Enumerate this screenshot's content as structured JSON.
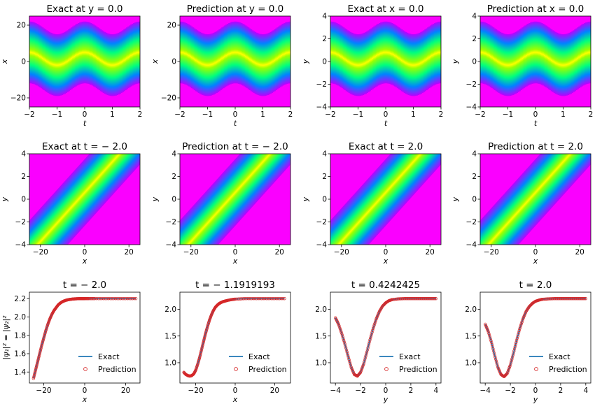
{
  "chart_data": [
    {
      "type": "heatmap",
      "title": "Exact at y = 0.0",
      "xlabel": "t",
      "ylabel": "x",
      "xlim": [
        -2,
        2
      ],
      "ylim": [
        -25,
        25
      ],
      "xticks": [
        -2,
        -1,
        0,
        1,
        2
      ],
      "yticks": [
        -20,
        0,
        20
      ],
      "field": "soliton-t-x",
      "colormap": "hsv"
    },
    {
      "type": "heatmap",
      "title": "Prediction at y = 0.0",
      "xlabel": "t",
      "ylabel": "x",
      "xlim": [
        -2,
        2
      ],
      "ylim": [
        -25,
        25
      ],
      "xticks": [
        -2,
        -1,
        0,
        1,
        2
      ],
      "yticks": [
        -20,
        0,
        20
      ],
      "field": "soliton-t-x",
      "colormap": "hsv"
    },
    {
      "type": "heatmap",
      "title": "Exact at x = 0.0",
      "xlabel": "t",
      "ylabel": "y",
      "xlim": [
        -2,
        2
      ],
      "ylim": [
        -4,
        4
      ],
      "xticks": [
        -2,
        -1,
        0,
        1,
        2
      ],
      "yticks": [
        -4,
        -2,
        0,
        2,
        4
      ],
      "field": "soliton-t-y",
      "colormap": "hsv"
    },
    {
      "type": "heatmap",
      "title": "Prediction at x = 0.0",
      "xlabel": "t",
      "ylabel": "y",
      "xlim": [
        -2,
        2
      ],
      "ylim": [
        -4,
        4
      ],
      "xticks": [
        -2,
        -1,
        0,
        1,
        2
      ],
      "yticks": [
        -4,
        -2,
        0,
        2,
        4
      ],
      "field": "soliton-t-y",
      "colormap": "hsv"
    },
    {
      "type": "heatmap",
      "title": "Exact at t = − 2.0",
      "xlabel": "x",
      "ylabel": "y",
      "xlim": [
        -25,
        25
      ],
      "ylim": [
        -4,
        4
      ],
      "xticks": [
        -20,
        0,
        20
      ],
      "yticks": [
        -4,
        -2,
        0,
        2,
        4
      ],
      "field": "soliton-x-y",
      "shift": 0,
      "colormap": "hsv"
    },
    {
      "type": "heatmap",
      "title": "Prediction at t = − 2.0",
      "xlabel": "x",
      "ylabel": "y",
      "xlim": [
        -25,
        25
      ],
      "ylim": [
        -4,
        4
      ],
      "xticks": [
        -20,
        0,
        20
      ],
      "yticks": [
        -4,
        -2,
        0,
        2,
        4
      ],
      "field": "soliton-x-y",
      "shift": 0,
      "colormap": "hsv"
    },
    {
      "type": "heatmap",
      "title": "Exact at t = 2.0",
      "xlabel": "x",
      "ylabel": "y",
      "xlim": [
        -25,
        25
      ],
      "ylim": [
        -4,
        4
      ],
      "xticks": [
        -20,
        0,
        20
      ],
      "yticks": [
        -4,
        -2,
        0,
        2,
        4
      ],
      "field": "soliton-x-y",
      "shift": 0,
      "colormap": "hsv"
    },
    {
      "type": "heatmap",
      "title": "Prediction at t = 2.0",
      "xlabel": "x",
      "ylabel": "y",
      "xlim": [
        -25,
        25
      ],
      "ylim": [
        -4,
        4
      ],
      "xticks": [
        -20,
        0,
        20
      ],
      "yticks": [
        -4,
        -2,
        0,
        2,
        4
      ],
      "field": "soliton-x-y",
      "shift": 0,
      "colormap": "hsv"
    },
    {
      "type": "line",
      "title": "t = − 2.0",
      "xlabel": "x",
      "ylabel": "|ψ₁|² = |ψ₂|²",
      "xlim": [
        -27,
        27
      ],
      "ylim": [
        1.28,
        2.27
      ],
      "xticks": [
        -20,
        0,
        20
      ],
      "yticks": [
        1.4,
        1.6,
        1.8,
        2.0,
        2.2
      ],
      "ytick_format": "1",
      "legend": "lower-right",
      "x": [
        -25,
        -24,
        -23,
        -22,
        -21,
        -20,
        -19,
        -18,
        -17,
        -16,
        -15,
        -14,
        -13,
        -12,
        -11,
        -10,
        -9,
        -8,
        -7,
        -6,
        -5,
        -4,
        -3,
        -2,
        -1,
        0,
        2,
        5,
        10,
        15,
        20,
        25
      ],
      "y": [
        1.33,
        1.42,
        1.51,
        1.6,
        1.69,
        1.77,
        1.85,
        1.92,
        1.98,
        2.03,
        2.07,
        2.1,
        2.13,
        2.15,
        2.165,
        2.175,
        2.183,
        2.188,
        2.192,
        2.195,
        2.197,
        2.198,
        2.199,
        2.2,
        2.2,
        2.2,
        2.2,
        2.2,
        2.2,
        2.2,
        2.2,
        2.2
      ],
      "series": [
        {
          "name": "Exact",
          "color": "#1f77b4",
          "style": "line"
        },
        {
          "name": "Prediction",
          "color": "#d62728",
          "style": "open-circle"
        }
      ]
    },
    {
      "type": "line",
      "title": "t = − 1.1919193",
      "xlabel": "x",
      "ylabel": "",
      "xlim": [
        -28,
        28
      ],
      "ylim": [
        0.62,
        2.32
      ],
      "xticks": [
        -20,
        0,
        20
      ],
      "yticks": [
        1.0,
        1.5,
        2.0
      ],
      "ytick_format": "1",
      "legend": "lower-right",
      "x": [
        -26,
        -25,
        -24,
        -23,
        -22,
        -21,
        -20,
        -19,
        -18,
        -17,
        -16,
        -15,
        -14,
        -13,
        -12,
        -11,
        -10,
        -9,
        -8,
        -7,
        -6,
        -5,
        -4,
        -2,
        0,
        5,
        10,
        15,
        20,
        25
      ],
      "y": [
        0.82,
        0.78,
        0.76,
        0.75,
        0.76,
        0.79,
        0.86,
        0.97,
        1.1,
        1.25,
        1.4,
        1.55,
        1.68,
        1.8,
        1.9,
        1.98,
        2.04,
        2.08,
        2.11,
        2.13,
        2.145,
        2.155,
        2.165,
        2.18,
        2.19,
        2.2,
        2.2,
        2.2,
        2.2,
        2.2
      ],
      "series": [
        {
          "name": "Exact",
          "color": "#1f77b4",
          "style": "line"
        },
        {
          "name": "Prediction",
          "color": "#d62728",
          "style": "open-circle"
        }
      ]
    },
    {
      "type": "line",
      "title": "t = 0.4242425",
      "xlabel": "y",
      "ylabel": "",
      "xlim": [
        -4.4,
        4.4
      ],
      "ylim": [
        0.62,
        2.32
      ],
      "xticks": [
        -4,
        -2,
        0,
        2,
        4
      ],
      "yticks": [
        1.0,
        1.5,
        2.0
      ],
      "ytick_format": "1",
      "legend": "lower-right",
      "x": [
        -4,
        -3.75,
        -3.5,
        -3.25,
        -3,
        -2.75,
        -2.5,
        -2.25,
        -2,
        -1.75,
        -1.5,
        -1.25,
        -1,
        -0.75,
        -0.5,
        -0.25,
        0,
        0.25,
        0.5,
        1,
        1.5,
        2,
        2.5,
        3,
        3.5,
        4
      ],
      "y": [
        1.84,
        1.72,
        1.55,
        1.35,
        1.13,
        0.92,
        0.78,
        0.75,
        0.82,
        0.98,
        1.2,
        1.43,
        1.64,
        1.82,
        1.96,
        2.06,
        2.12,
        2.16,
        2.18,
        2.195,
        2.2,
        2.2,
        2.2,
        2.2,
        2.2,
        2.2
      ],
      "series": [
        {
          "name": "Exact",
          "color": "#1f77b4",
          "style": "line"
        },
        {
          "name": "Prediction",
          "color": "#d62728",
          "style": "open-circle"
        }
      ]
    },
    {
      "type": "line",
      "title": "t = 2.0",
      "xlabel": "y",
      "ylabel": "",
      "xlim": [
        -4.4,
        4.4
      ],
      "ylim": [
        0.62,
        2.32
      ],
      "xticks": [
        -4,
        -2,
        0,
        2,
        4
      ],
      "yticks": [
        1.0,
        1.5,
        2.0
      ],
      "ytick_format": "1",
      "legend": "lower-right",
      "x": [
        -4,
        -3.75,
        -3.5,
        -3.25,
        -3,
        -2.75,
        -2.5,
        -2.25,
        -2,
        -1.75,
        -1.5,
        -1.25,
        -1,
        -0.75,
        -0.5,
        -0.25,
        0,
        0.25,
        0.5,
        1,
        1.5,
        2,
        2.5,
        3,
        3.5,
        4
      ],
      "y": [
        1.72,
        1.58,
        1.38,
        1.14,
        0.92,
        0.78,
        0.74,
        0.8,
        0.96,
        1.18,
        1.42,
        1.64,
        1.82,
        1.96,
        2.05,
        2.11,
        2.15,
        2.17,
        2.185,
        2.195,
        2.2,
        2.2,
        2.2,
        2.2,
        2.2,
        2.2
      ],
      "series": [
        {
          "name": "Exact",
          "color": "#1f77b4",
          "style": "line"
        },
        {
          "name": "Prediction",
          "color": "#d62728",
          "style": "open-circle"
        }
      ]
    }
  ]
}
